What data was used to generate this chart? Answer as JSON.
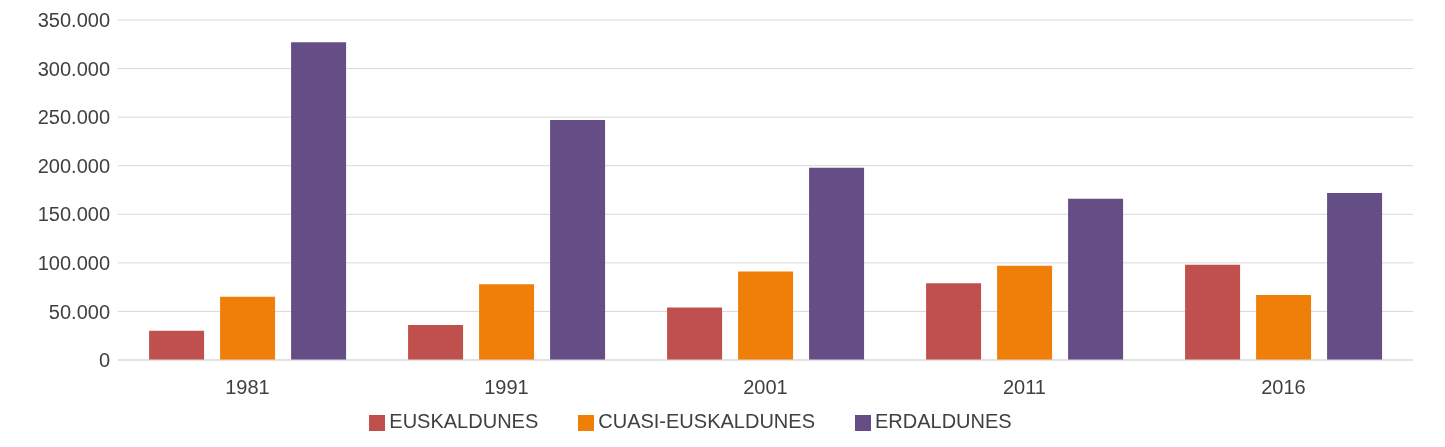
{
  "chart_data": {
    "type": "bar",
    "categories": [
      "1981",
      "1991",
      "2001",
      "2011",
      "2016"
    ],
    "series": [
      {
        "name": "EUSKALDUNES",
        "color": "#c0504d",
        "values": [
          30000,
          36000,
          54000,
          79000,
          98000
        ]
      },
      {
        "name": "CUASI-EUSKALDUNES",
        "color": "#f07f09",
        "values": [
          65000,
          78000,
          91000,
          97000,
          67000
        ]
      },
      {
        "name": "ERDALDUNES",
        "color": "#654d85",
        "values": [
          327000,
          247000,
          198000,
          166000,
          172000
        ]
      }
    ],
    "ylim": [
      0,
      350000
    ],
    "yticks": [
      0,
      {
        "value": 50000,
        "label": "50.000"
      },
      {
        "value": 100000,
        "label": "100.000"
      },
      {
        "value": 150000,
        "label": "150.000"
      },
      {
        "value": 200000,
        "label": "200.000"
      },
      {
        "value": 250000,
        "label": "250.000"
      },
      {
        "value": 300000,
        "label": "300.000"
      },
      {
        "value": 350000,
        "label": "350.000"
      }
    ],
    "grid": "y",
    "legend": "bottom"
  }
}
